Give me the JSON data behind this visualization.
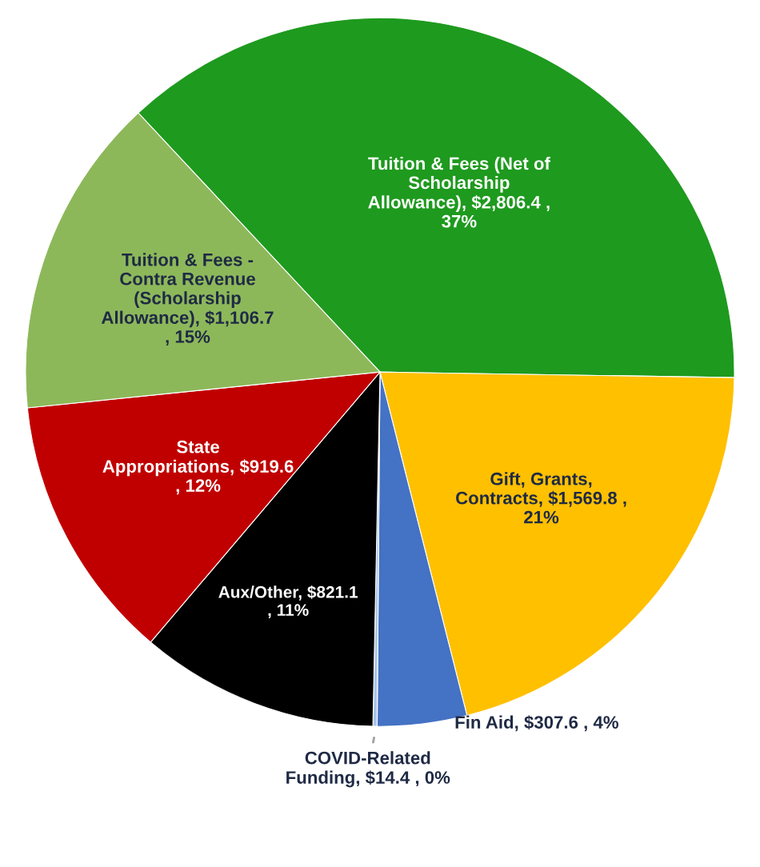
{
  "chart_data": {
    "type": "pie",
    "categories": [
      "Tuition & Fees (Net of Scholarship Allowance)",
      "Gift, Grants, Contracts",
      "Fin Aid",
      "COVID-Related Funding",
      "Aux/Other",
      "State Appropriations",
      "Tuition & Fees - Contra Revenue (Scholarship Allowance)"
    ],
    "values": [
      2806.4,
      1569.8,
      307.6,
      14.4,
      821.1,
      919.6,
      1106.7
    ],
    "value_labels": [
      "$2,806.4 , 37%",
      "$1,569.8 , 21%",
      "$307.6 , 4%",
      "$14.4 , 0%",
      "$821.1 , 11%",
      "$919.6 , 12%",
      "$1,106.7 , 15%"
    ],
    "colors": [
      "#1e9a1e",
      "#ffc000",
      "#4472c4",
      "#a9c4e8",
      "#000000",
      "#c00000",
      "#8db85a"
    ],
    "legend": false
  }
}
